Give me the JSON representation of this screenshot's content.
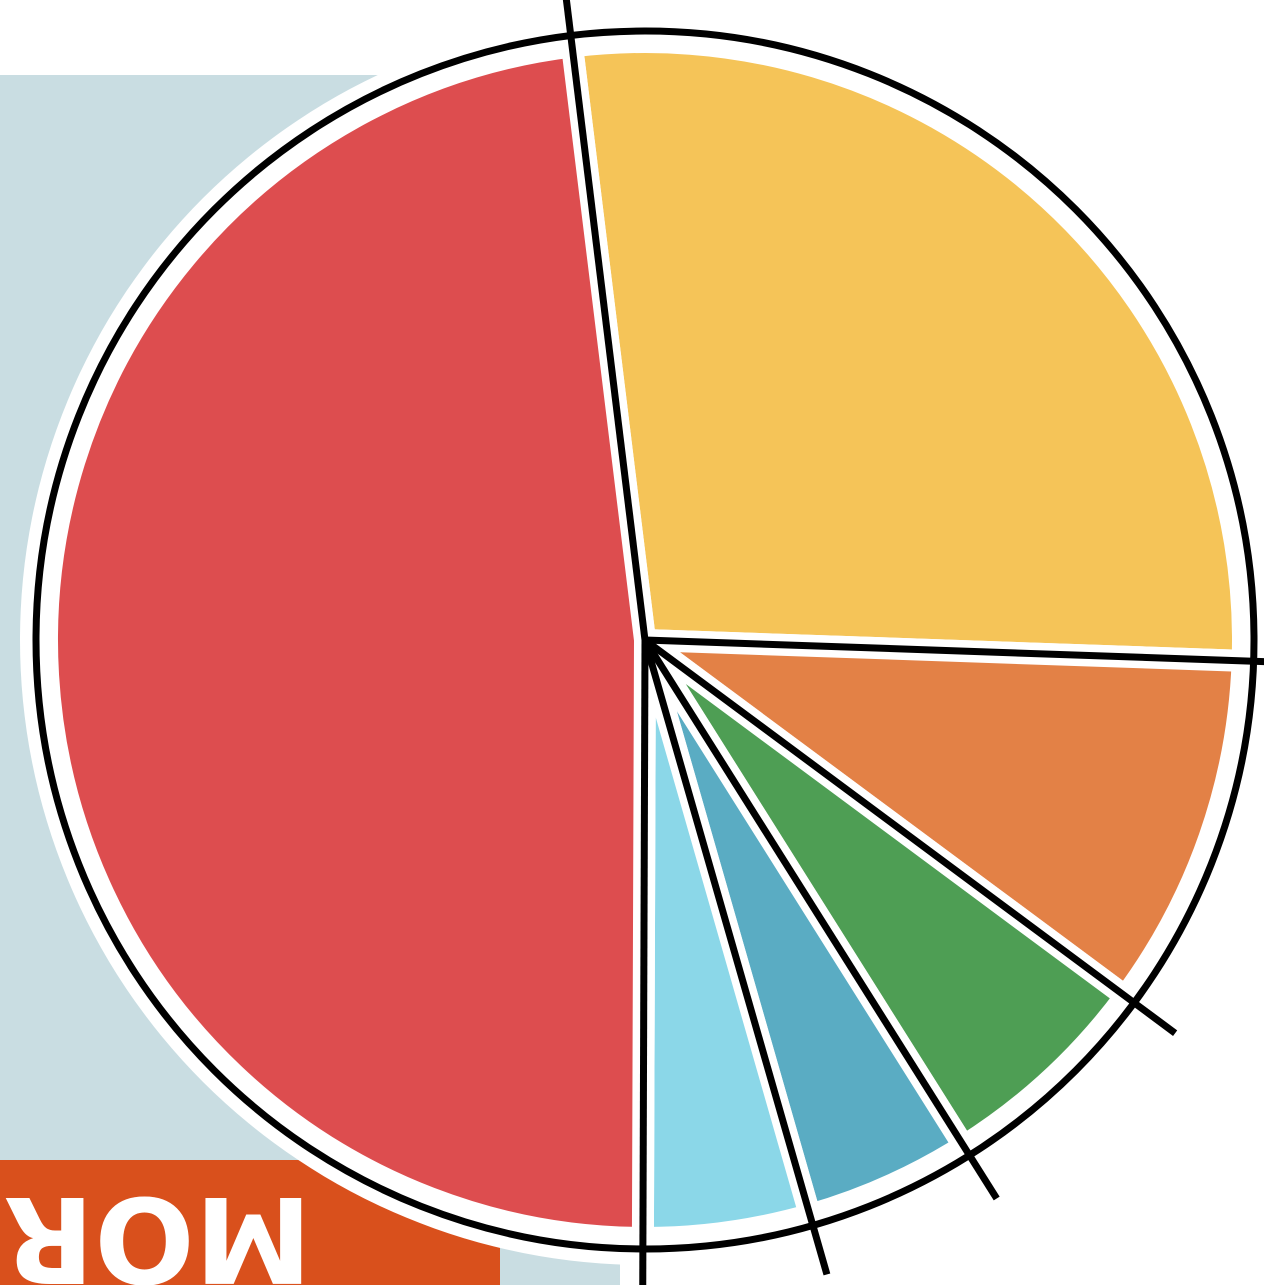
{
  "chart_data": {
    "type": "pie",
    "categories": [
      null,
      null,
      null,
      null,
      null,
      null
    ],
    "values": [
      27.5,
      9.6,
      5.9,
      4.5,
      4.5,
      48
    ],
    "colors": [
      "#f5c458",
      "#e38146",
      "#4e9e54",
      "#5aacc3",
      "#8bd7e8",
      "#dd4d4f"
    ],
    "annotation": "MORE TH"
  }
}
